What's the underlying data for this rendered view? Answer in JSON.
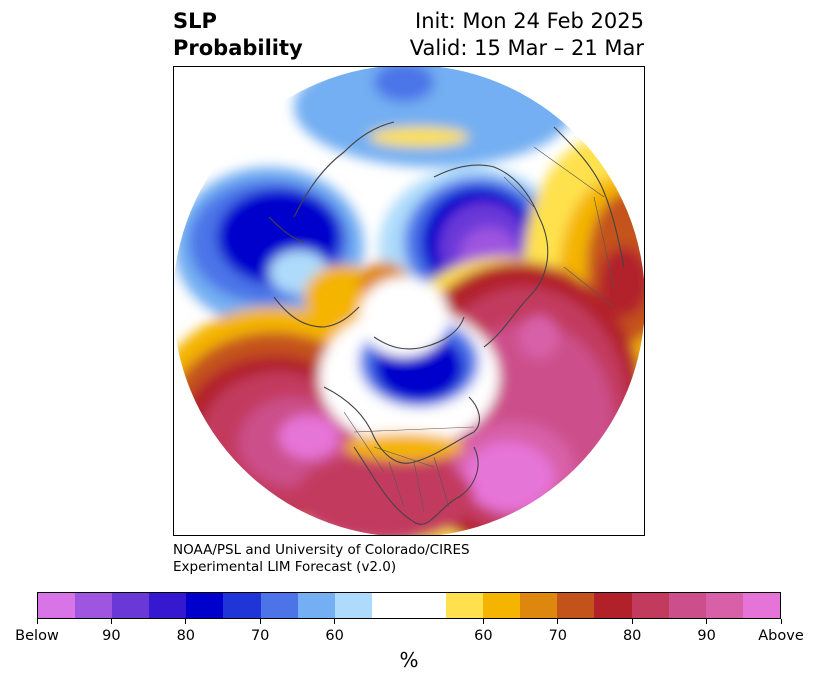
{
  "title": {
    "left_line1": "SLP",
    "left_line2": "Probability",
    "init": "Init: Mon 24 Feb 2025",
    "valid": "Valid: 15 Mar – 21 Mar"
  },
  "credit": {
    "line1": "NOAA/PSL and University of Colorado/CIRES",
    "line2": "Experimental LIM Forecast (v2.0)"
  },
  "colorbar": {
    "unit": "%",
    "colors": [
      "#d873e8",
      "#9e55e0",
      "#6b38d8",
      "#3518d0",
      "#0000cc",
      "#2035d8",
      "#4c74e8",
      "#73aff2",
      "#aedbfb",
      "#ffffff",
      "#ffffff",
      "#ffe14e",
      "#f4b400",
      "#de870e",
      "#c4521b",
      "#b2212a",
      "#c23a5e",
      "#cc4f8b",
      "#d860a8",
      "#e674d8"
    ],
    "tick_labels": [
      "Below",
      "90",
      "80",
      "70",
      "60",
      "60",
      "70",
      "80",
      "90",
      "Above"
    ]
  },
  "map": {
    "projection": "north-polar-stereographic",
    "features": [
      "coastlines",
      "country-borders",
      "state-borders"
    ]
  }
}
